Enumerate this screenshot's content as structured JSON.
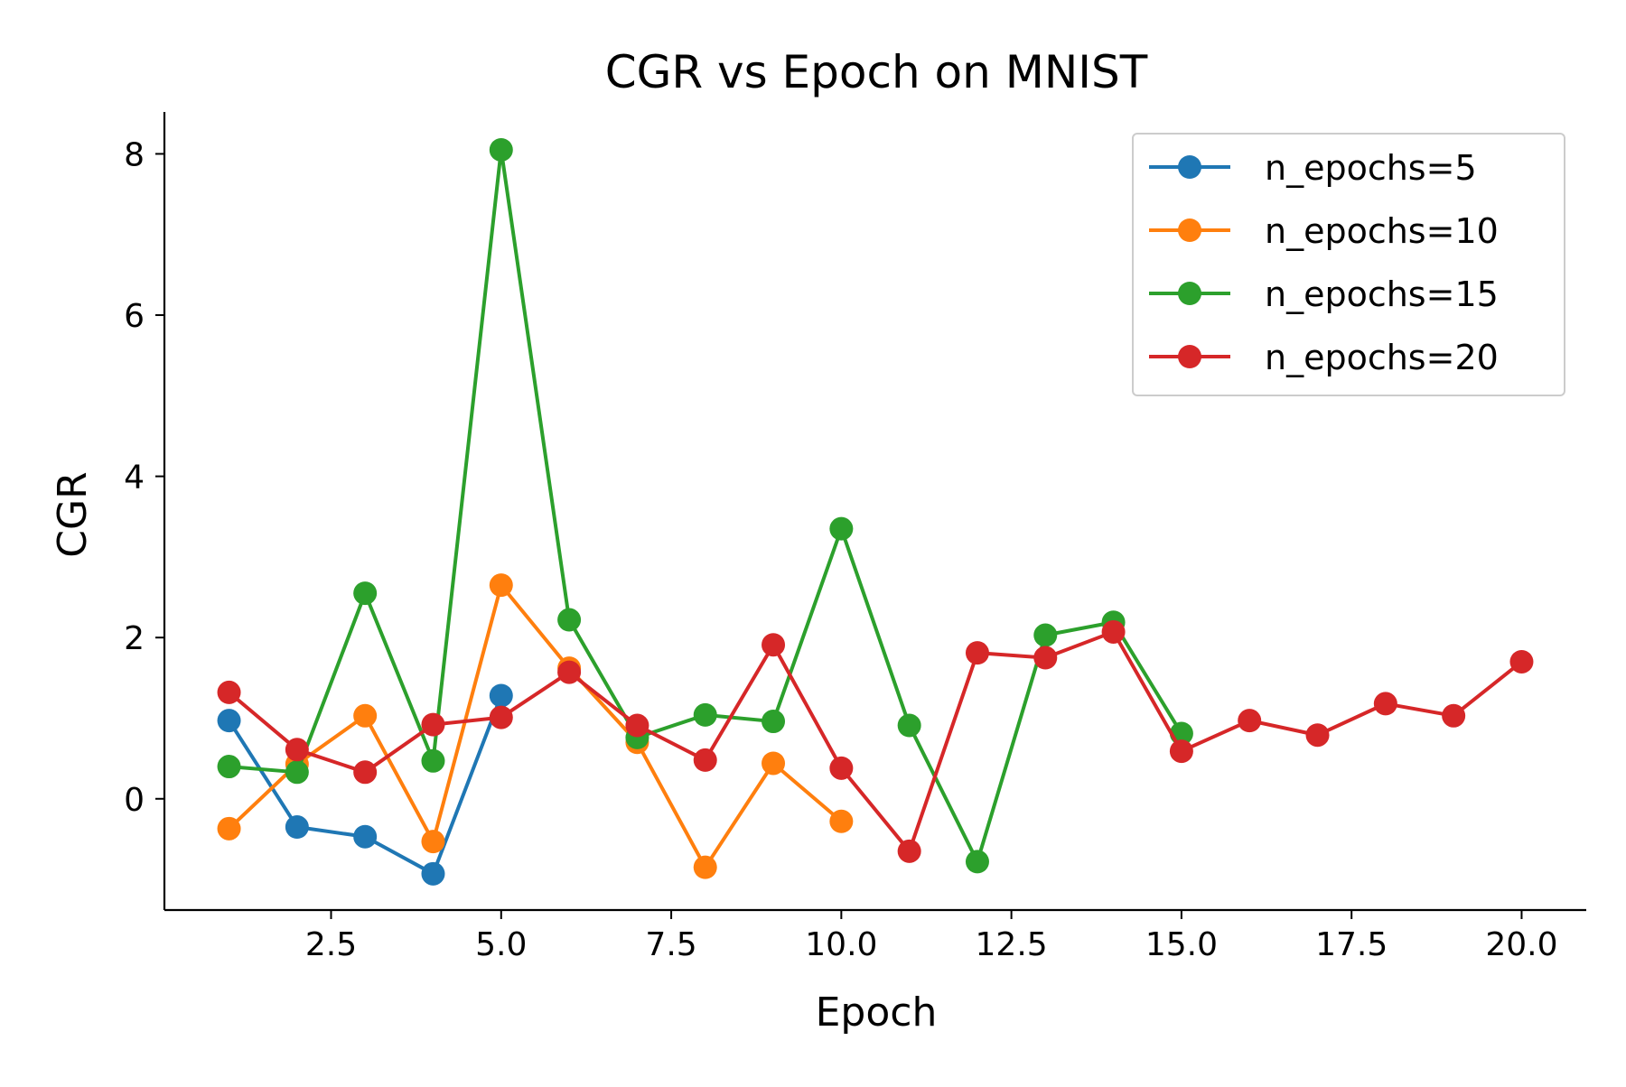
{
  "chart_data": {
    "type": "line",
    "title": "CGR vs Epoch on MNIST",
    "xlabel": "Epoch",
    "ylabel": "CGR",
    "xlim": [
      0.05,
      20.95
    ],
    "ylim": [
      -1.38,
      8.52
    ],
    "xticks": [
      2.5,
      5.0,
      7.5,
      10.0,
      12.5,
      15.0,
      17.5,
      20.0
    ],
    "xtick_labels": [
      "2.5",
      "5.0",
      "7.5",
      "10.0",
      "12.5",
      "15.0",
      "17.5",
      "20.0"
    ],
    "yticks": [
      0,
      2,
      4,
      6,
      8
    ],
    "ytick_labels": [
      "0",
      "2",
      "4",
      "6",
      "8"
    ],
    "grid": false,
    "legend_position": "top-right",
    "series": [
      {
        "name": "n_epochs=5",
        "color": "#1f77b4",
        "x": [
          1,
          2,
          3,
          4,
          5
        ],
        "y": [
          0.97,
          -0.35,
          -0.47,
          -0.93,
          1.28
        ]
      },
      {
        "name": "n_epochs=10",
        "color": "#ff7f0e",
        "x": [
          1,
          2,
          3,
          4,
          5,
          6,
          7,
          8,
          9,
          10
        ],
        "y": [
          -0.37,
          0.43,
          1.03,
          -0.53,
          2.65,
          1.62,
          0.7,
          -0.85,
          0.44,
          -0.28
        ]
      },
      {
        "name": "n_epochs=15",
        "color": "#2ca02c",
        "x": [
          1,
          2,
          3,
          4,
          5,
          6,
          7,
          8,
          9,
          10,
          11,
          12,
          13,
          14,
          15
        ],
        "y": [
          0.4,
          0.33,
          2.55,
          0.47,
          8.05,
          2.22,
          0.76,
          1.04,
          0.96,
          3.35,
          0.91,
          -0.78,
          2.03,
          2.19,
          0.81
        ]
      },
      {
        "name": "n_epochs=20",
        "color": "#d62728",
        "x": [
          1,
          2,
          3,
          4,
          5,
          6,
          7,
          8,
          9,
          10,
          11,
          12,
          13,
          14,
          15,
          16,
          17,
          18,
          19,
          20
        ],
        "y": [
          1.32,
          0.61,
          0.33,
          0.92,
          1.01,
          1.57,
          0.91,
          0.48,
          1.91,
          0.38,
          -0.65,
          1.81,
          1.75,
          2.07,
          0.59,
          0.97,
          0.79,
          1.18,
          1.03,
          1.7
        ]
      }
    ]
  }
}
